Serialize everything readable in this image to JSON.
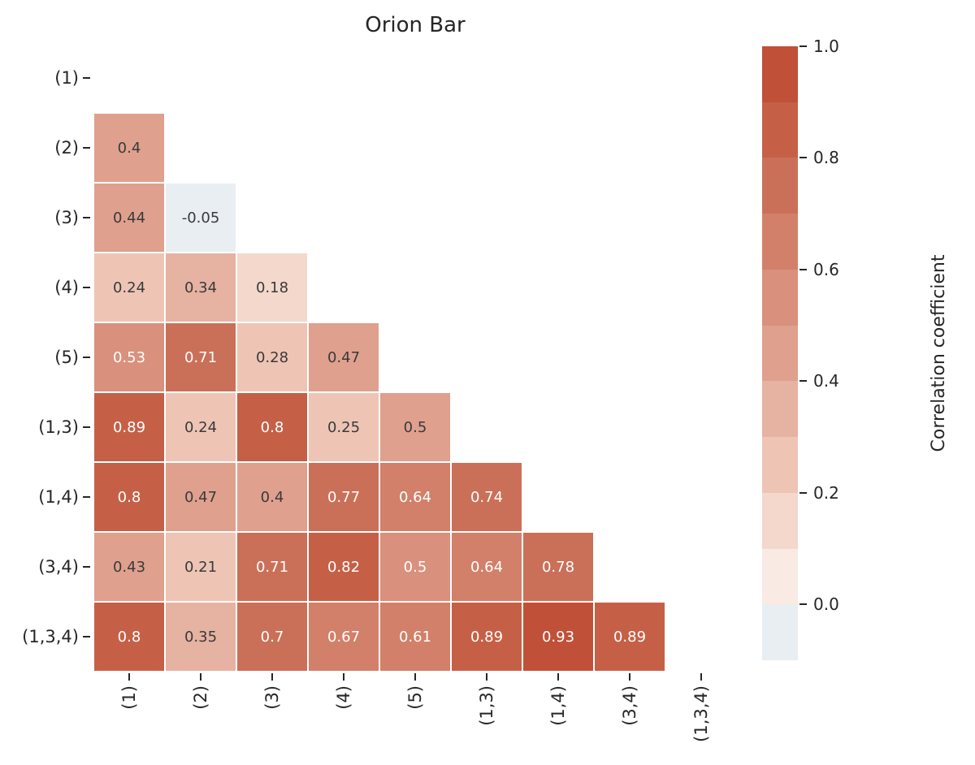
{
  "title": "Orion Bar",
  "chart_data": {
    "type": "heatmap",
    "title": "Orion Bar",
    "subtitle": "",
    "categories": [
      "(1)",
      "(2)",
      "(3)",
      "(4)",
      "(5)",
      "(1,3)",
      "(1,4)",
      "(3,4)",
      "(1,3,4)"
    ],
    "mask": "diagonal and upper triangle hidden (white)",
    "legend_position": "right colorbar",
    "grid": "white 2px gaps between cells",
    "rows": [
      {
        "label": "(2)",
        "cells": [
          {
            "text": "0.4",
            "v": 0.4
          }
        ]
      },
      {
        "label": "(3)",
        "cells": [
          {
            "text": "0.44",
            "v": 0.44
          },
          {
            "text": "-0.05",
            "v": -0.05
          }
        ]
      },
      {
        "label": "(4)",
        "cells": [
          {
            "text": "0.24",
            "v": 0.24
          },
          {
            "text": "0.34",
            "v": 0.34
          },
          {
            "text": "0.18",
            "v": 0.18
          }
        ]
      },
      {
        "label": "(5)",
        "cells": [
          {
            "text": "0.53",
            "v": 0.53
          },
          {
            "text": "0.71",
            "v": 0.71
          },
          {
            "text": "0.28",
            "v": 0.28
          },
          {
            "text": "0.47",
            "v": 0.47
          }
        ]
      },
      {
        "label": "(1,3)",
        "cells": [
          {
            "text": "0.89",
            "v": 0.89
          },
          {
            "text": "0.24",
            "v": 0.24
          },
          {
            "text": "0.8",
            "v": 0.8
          },
          {
            "text": "0.25",
            "v": 0.25
          },
          {
            "text": "0.5",
            "v": 0.49
          }
        ]
      },
      {
        "label": "(1,4)",
        "cells": [
          {
            "text": "0.8",
            "v": 0.8
          },
          {
            "text": "0.47",
            "v": 0.47
          },
          {
            "text": "0.4",
            "v": 0.4
          },
          {
            "text": "0.77",
            "v": 0.77
          },
          {
            "text": "0.64",
            "v": 0.64
          },
          {
            "text": "0.74",
            "v": 0.74
          }
        ]
      },
      {
        "label": "(3,4)",
        "cells": [
          {
            "text": "0.43",
            "v": 0.43
          },
          {
            "text": "0.21",
            "v": 0.21
          },
          {
            "text": "0.71",
            "v": 0.71
          },
          {
            "text": "0.82",
            "v": 0.82
          },
          {
            "text": "0.5",
            "v": 0.5
          },
          {
            "text": "0.64",
            "v": 0.64
          },
          {
            "text": "0.78",
            "v": 0.78
          }
        ]
      },
      {
        "label": "(1,3,4)",
        "cells": [
          {
            "text": "0.8",
            "v": 0.8
          },
          {
            "text": "0.35",
            "v": 0.35
          },
          {
            "text": "0.7",
            "v": 0.7
          },
          {
            "text": "0.67",
            "v": 0.67
          },
          {
            "text": "0.61",
            "v": 0.61
          },
          {
            "text": "0.89",
            "v": 0.89
          },
          {
            "text": "0.93",
            "v": 0.93
          },
          {
            "text": "0.89",
            "v": 0.89
          }
        ]
      }
    ],
    "colorbar": {
      "label": "Correlation coefficient",
      "ticks": [
        "1.0",
        "0.8",
        "0.6",
        "0.4",
        "0.2",
        "0.0"
      ],
      "tick_values": [
        1.0,
        0.8,
        0.6,
        0.4,
        0.2,
        0.0
      ],
      "vmin": -0.1,
      "vmax": 1.0,
      "n_segments": 11
    }
  },
  "colors": {
    "palette_low_to_high": [
      "#e8eef2",
      "#f9eae3",
      "#f4d8cc",
      "#eec5b5",
      "#e6b2a2",
      "#dfa08e",
      "#d9907c",
      "#d2806a",
      "#cb7058",
      "#c56047",
      "#c05038"
    ],
    "annotation_dark": "#3a3a3a",
    "annotation_light": "#ffffff",
    "axis_text": "#262626",
    "background": "#ffffff",
    "white_text_threshold": 0.5
  }
}
